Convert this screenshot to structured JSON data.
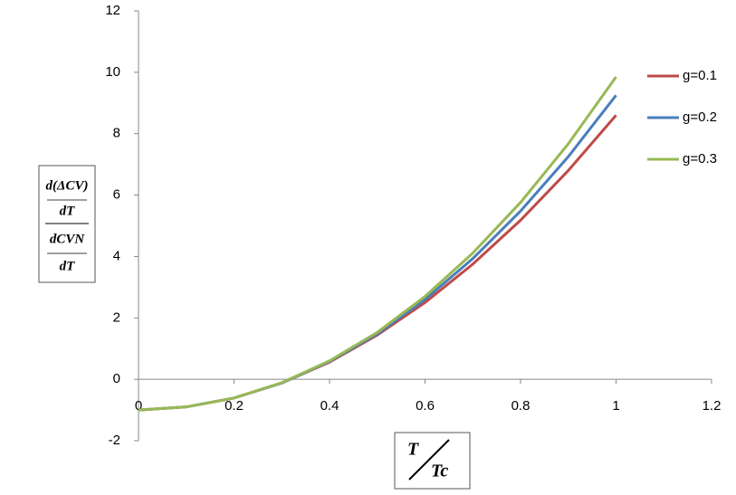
{
  "chart_data": {
    "type": "line",
    "xlabel": [
      "T",
      "Tc"
    ],
    "ylabel": [
      "d(ΔCV)",
      "dT",
      "dCVN",
      "dT"
    ],
    "x": [
      0,
      0.1,
      0.2,
      0.3,
      0.4,
      0.5,
      0.6,
      0.7,
      0.8,
      0.9,
      1
    ],
    "series": [
      {
        "name": "g=0.1",
        "color": "#be4b48",
        "values": [
          -1,
          -0.9,
          -0.61,
          -0.12,
          0.56,
          1.44,
          2.5,
          3.75,
          5.18,
          6.8,
          8.6
        ]
      },
      {
        "name": "g=0.2",
        "color": "#4a7ebb",
        "values": [
          -1,
          -0.9,
          -0.61,
          -0.12,
          0.58,
          1.48,
          2.6,
          3.93,
          5.48,
          7.25,
          9.25
        ]
      },
      {
        "name": "g=0.3",
        "color": "#98b954",
        "values": [
          -1,
          -0.9,
          -0.61,
          -0.11,
          0.6,
          1.53,
          2.7,
          4.11,
          5.76,
          7.67,
          9.85
        ]
      }
    ],
    "xlim": [
      0,
      1.2
    ],
    "xticks": [
      0,
      0.2,
      0.4,
      0.6,
      0.8,
      1,
      1.2
    ],
    "ylim": [
      -2,
      12
    ],
    "yticks": [
      -2,
      0,
      2,
      4,
      6,
      8,
      10,
      12
    ],
    "legend": "right",
    "grid": false
  }
}
